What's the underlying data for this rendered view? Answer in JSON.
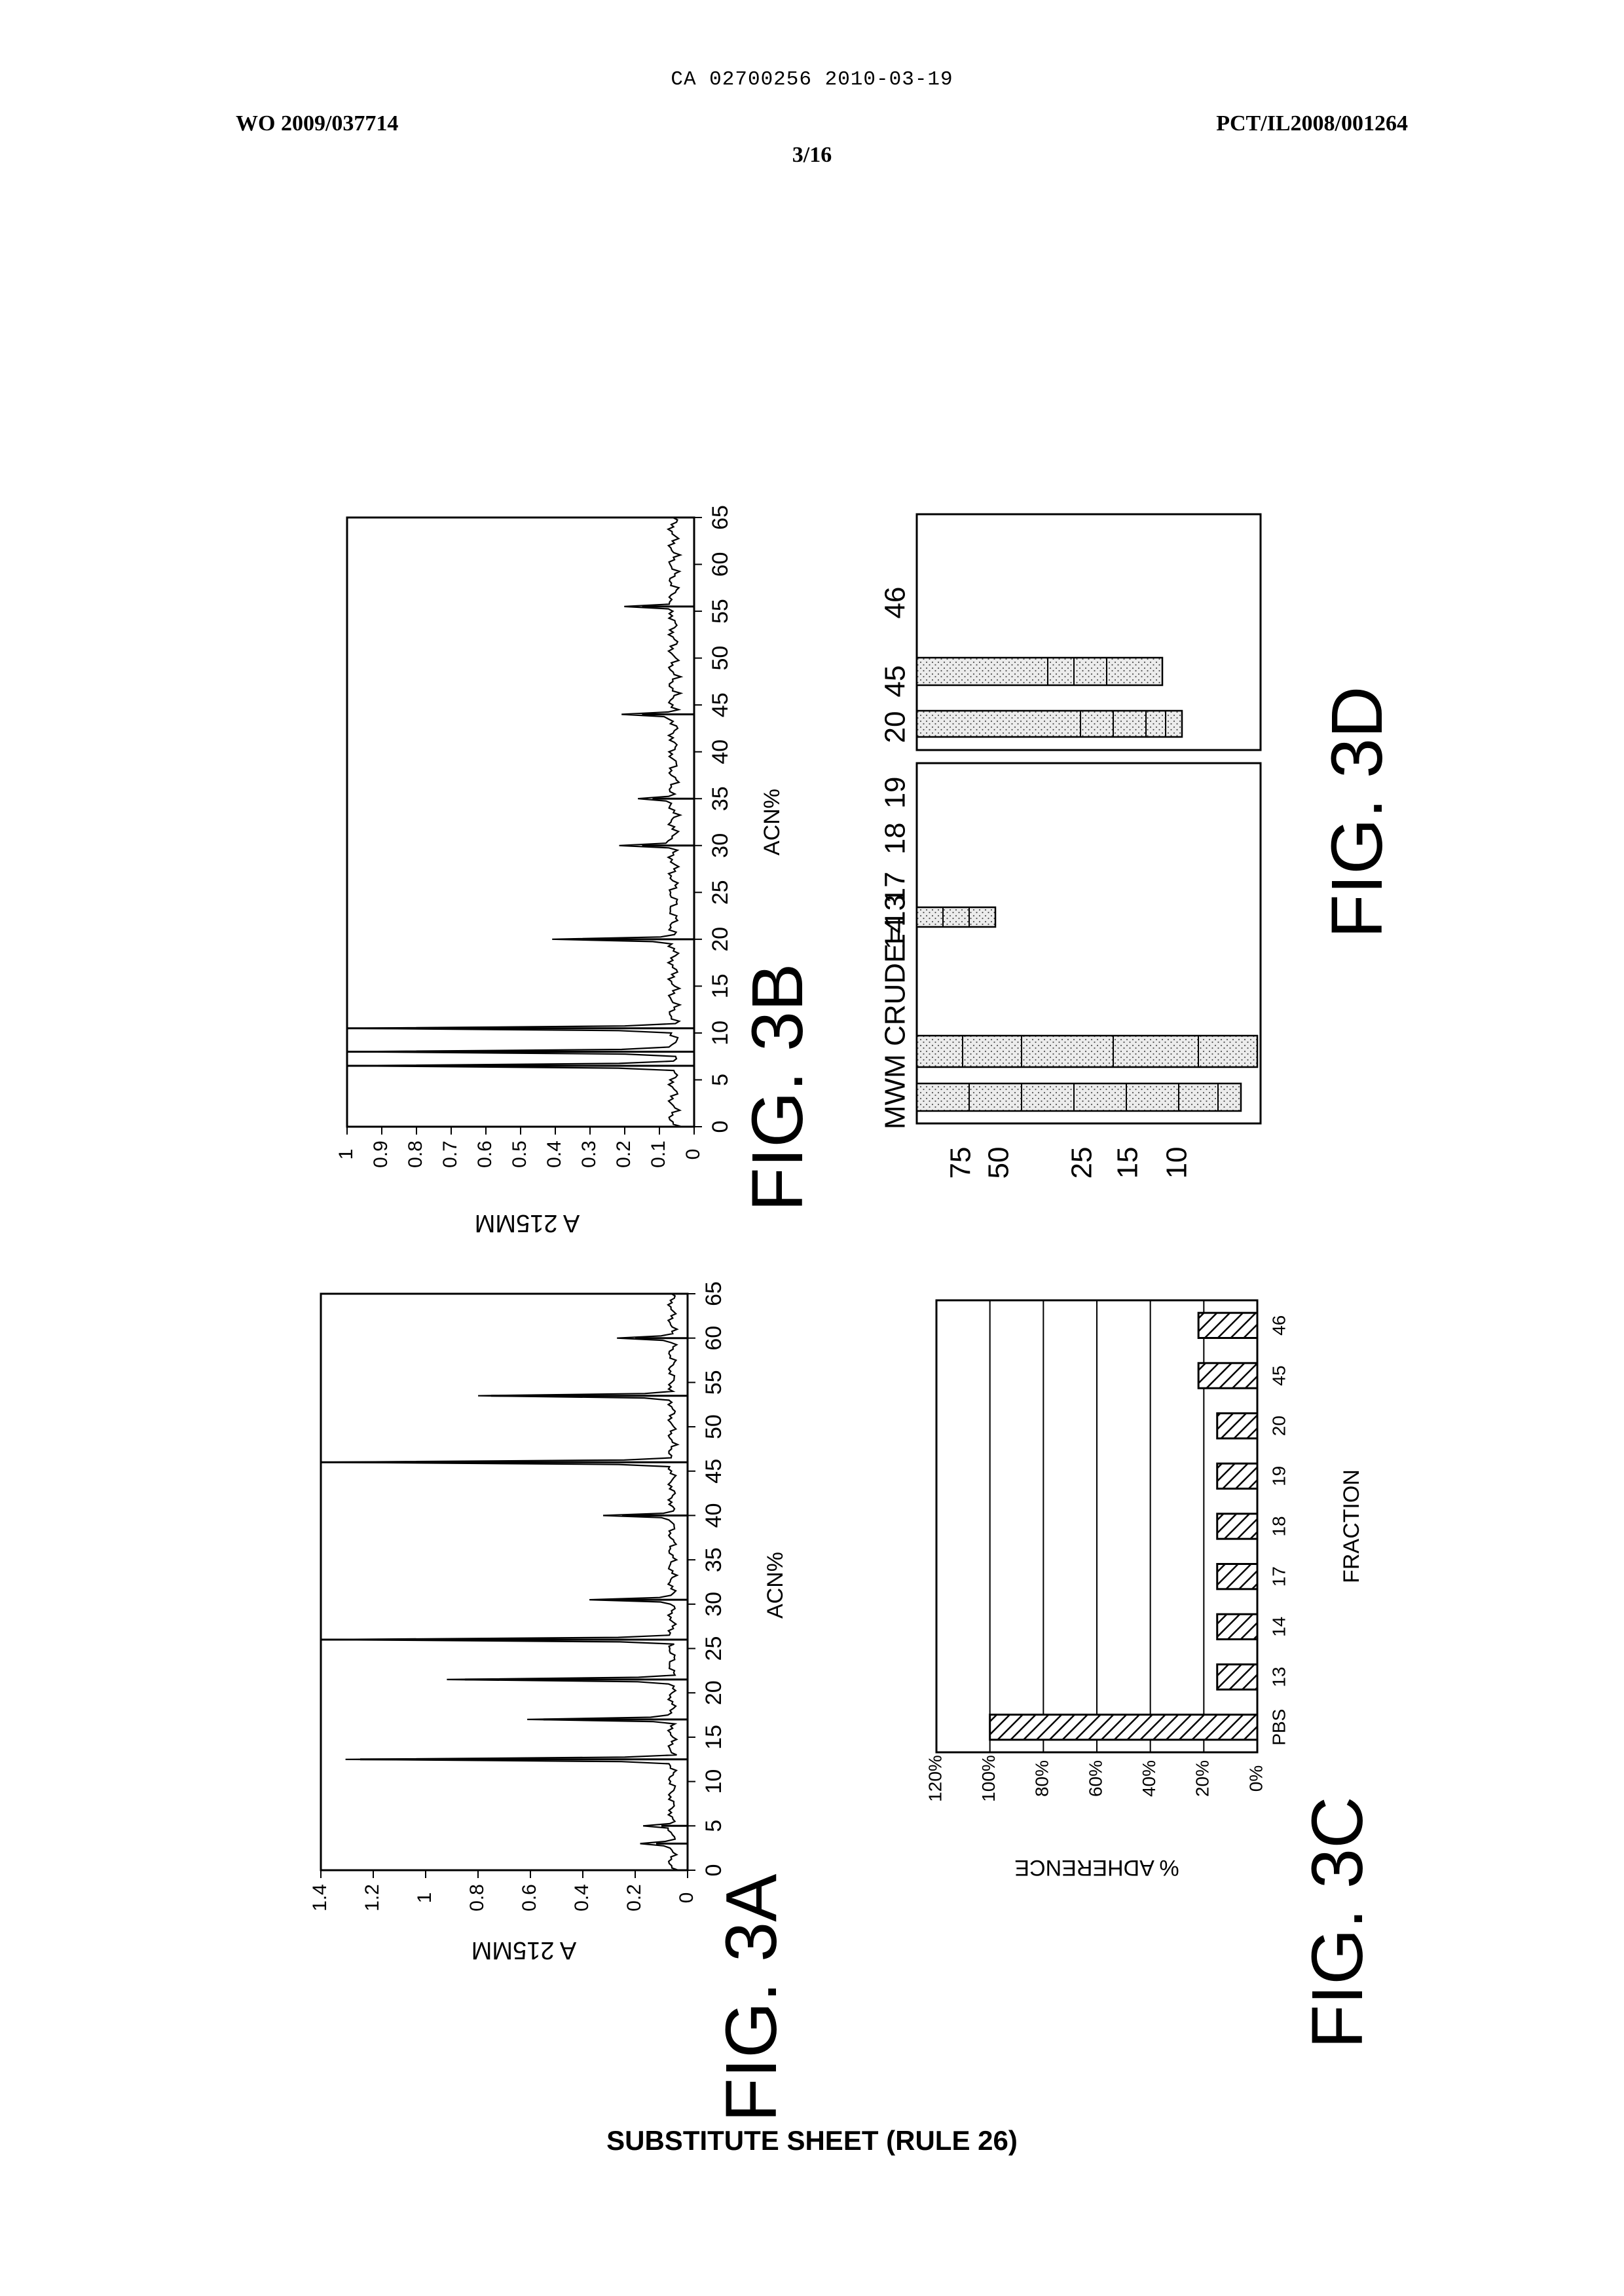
{
  "header": {
    "center_id": "CA 02700256 2010-03-19",
    "left": "WO 2009/037714",
    "right": "PCT/IL2008/001264",
    "page": "3/16"
  },
  "footer": "SUBSTITUTE SHEET (RULE 26)",
  "chart_data": [
    {
      "id": "fig3a",
      "type": "line",
      "title": "FIG. 3A",
      "xlabel": "ACN%",
      "ylabel": "A 215MM",
      "xlim": [
        0,
        65
      ],
      "ylim": [
        0,
        1.4
      ],
      "x_ticks": [
        "0",
        "5",
        "10",
        "15",
        "20",
        "25",
        "30",
        "35",
        "40",
        "45",
        "50",
        "55",
        "60",
        "65"
      ],
      "y_ticks": [
        "0",
        "0.2",
        "0.4",
        "0.6",
        "0.8",
        "1",
        "1.2",
        "1.4"
      ],
      "peaks": [
        {
          "x": 3,
          "y": 0.12
        },
        {
          "x": 5,
          "y": 0.1
        },
        {
          "x": 12.5,
          "y": 1.25
        },
        {
          "x": 17,
          "y": 0.55
        },
        {
          "x": 21.5,
          "y": 0.85
        },
        {
          "x": 26,
          "y": 1.4
        },
        {
          "x": 30.5,
          "y": 0.3
        },
        {
          "x": 40,
          "y": 0.25
        },
        {
          "x": 46,
          "y": 1.4
        },
        {
          "x": 53.5,
          "y": 0.75
        },
        {
          "x": 60,
          "y": 0.2
        }
      ]
    },
    {
      "id": "fig3b",
      "type": "line",
      "title": "FIG. 3B",
      "xlabel": "ACN%",
      "ylabel": "A 215MM",
      "xlim": [
        0,
        65
      ],
      "ylim": [
        0,
        1
      ],
      "x_ticks": [
        "0",
        "5",
        "10",
        "15",
        "20",
        "25",
        "30",
        "35",
        "40",
        "45",
        "50",
        "55",
        "60",
        "65"
      ],
      "y_ticks": [
        "0",
        "0.1",
        "0.2",
        "0.3",
        "0.4",
        "0.5",
        "0.6",
        "0.7",
        "0.8",
        "0.9",
        "1"
      ],
      "peaks": [
        {
          "x": 6.5,
          "y": 1.0
        },
        {
          "x": 8,
          "y": 1.0
        },
        {
          "x": 10.5,
          "y": 1.0
        },
        {
          "x": 20,
          "y": 0.35
        },
        {
          "x": 30,
          "y": 0.15
        },
        {
          "x": 35,
          "y": 0.12
        },
        {
          "x": 44,
          "y": 0.15
        },
        {
          "x": 55.5,
          "y": 0.15
        }
      ]
    },
    {
      "id": "fig3c",
      "type": "bar",
      "title": "FIG. 3C",
      "xlabel": "FRACTION",
      "ylabel": "% ADHERENCE",
      "categories": [
        "PBS",
        "13",
        "14",
        "17",
        "18",
        "19",
        "20",
        "45",
        "46"
      ],
      "values": [
        100,
        15,
        15,
        15,
        15,
        15,
        15,
        22,
        22
      ],
      "ylim": [
        0,
        120
      ],
      "y_ticks": [
        "0%",
        "20%",
        "40%",
        "60%",
        "80%",
        "100%",
        "120%"
      ],
      "grid": true
    },
    {
      "id": "fig3d",
      "type": "other",
      "title": "FIG. 3D",
      "lane_labels": [
        "MWM",
        "CRUDE",
        "13",
        "14",
        "17",
        "18",
        "19",
        "20",
        "45",
        "46"
      ],
      "marker_labels": [
        "75",
        "50",
        "25",
        "15",
        "10"
      ]
    }
  ]
}
